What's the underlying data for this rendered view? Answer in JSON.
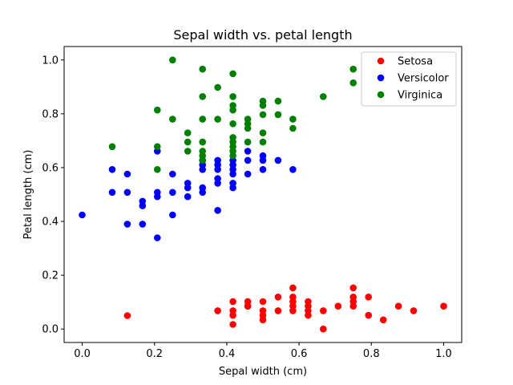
{
  "chart_data": {
    "type": "scatter",
    "title": "Sepal width vs. petal length",
    "xlabel": "Sepal width (cm)",
    "ylabel": "Petal length (cm)",
    "xlim": [
      -0.05,
      1.05
    ],
    "ylim": [
      -0.05,
      1.05
    ],
    "xticks": [
      0.0,
      0.2,
      0.4,
      0.6,
      0.8,
      1.0
    ],
    "yticks": [
      0.0,
      0.2,
      0.4,
      0.6,
      0.8,
      1.0
    ],
    "xtick_labels": [
      "0.0",
      "0.2",
      "0.4",
      "0.6",
      "0.8",
      "1.0"
    ],
    "ytick_labels": [
      "0.0",
      "0.2",
      "0.4",
      "0.6",
      "0.8",
      "1.0"
    ],
    "grid": false,
    "legend_position": "top-right",
    "series": [
      {
        "name": "Setosa",
        "color": "#ff0000",
        "points": [
          [
            0.125,
            0.05
          ],
          [
            0.375,
            0.068
          ],
          [
            0.417,
            0.102
          ],
          [
            0.417,
            0.068
          ],
          [
            0.417,
            0.051
          ],
          [
            0.417,
            0.017
          ],
          [
            0.458,
            0.102
          ],
          [
            0.458,
            0.085
          ],
          [
            0.458,
            0.085
          ],
          [
            0.5,
            0.102
          ],
          [
            0.5,
            0.068
          ],
          [
            0.5,
            0.051
          ],
          [
            0.5,
            0.034
          ],
          [
            0.542,
            0.119
          ],
          [
            0.542,
            0.068
          ],
          [
            0.583,
            0.153
          ],
          [
            0.583,
            0.119
          ],
          [
            0.583,
            0.102
          ],
          [
            0.583,
            0.085
          ],
          [
            0.583,
            0.068
          ],
          [
            0.625,
            0.102
          ],
          [
            0.625,
            0.085
          ],
          [
            0.625,
            0.068
          ],
          [
            0.625,
            0.051
          ],
          [
            0.667,
            0.068
          ],
          [
            0.667,
            0.0
          ],
          [
            0.708,
            0.085
          ],
          [
            0.75,
            0.153
          ],
          [
            0.75,
            0.119
          ],
          [
            0.75,
            0.102
          ],
          [
            0.75,
            0.085
          ],
          [
            0.792,
            0.119
          ],
          [
            0.792,
            0.051
          ],
          [
            0.833,
            0.034
          ],
          [
            0.875,
            0.085
          ],
          [
            0.917,
            0.068
          ],
          [
            1.0,
            0.085
          ]
        ]
      },
      {
        "name": "Versicolor",
        "color": "#0000ff",
        "points": [
          [
            0.0,
            0.424
          ],
          [
            0.083,
            0.593
          ],
          [
            0.083,
            0.508
          ],
          [
            0.125,
            0.576
          ],
          [
            0.125,
            0.508
          ],
          [
            0.125,
            0.39
          ],
          [
            0.167,
            0.475
          ],
          [
            0.167,
            0.458
          ],
          [
            0.167,
            0.39
          ],
          [
            0.208,
            0.661
          ],
          [
            0.208,
            0.508
          ],
          [
            0.208,
            0.492
          ],
          [
            0.208,
            0.339
          ],
          [
            0.25,
            0.576
          ],
          [
            0.25,
            0.508
          ],
          [
            0.25,
            0.424
          ],
          [
            0.292,
            0.542
          ],
          [
            0.292,
            0.525
          ],
          [
            0.292,
            0.492
          ],
          [
            0.333,
            0.627
          ],
          [
            0.333,
            0.61
          ],
          [
            0.333,
            0.593
          ],
          [
            0.333,
            0.525
          ],
          [
            0.333,
            0.508
          ],
          [
            0.375,
            0.627
          ],
          [
            0.375,
            0.61
          ],
          [
            0.375,
            0.593
          ],
          [
            0.375,
            0.559
          ],
          [
            0.375,
            0.542
          ],
          [
            0.375,
            0.441
          ],
          [
            0.417,
            0.627
          ],
          [
            0.417,
            0.61
          ],
          [
            0.417,
            0.593
          ],
          [
            0.417,
            0.576
          ],
          [
            0.417,
            0.542
          ],
          [
            0.417,
            0.525
          ],
          [
            0.458,
            0.661
          ],
          [
            0.458,
            0.627
          ],
          [
            0.458,
            0.576
          ],
          [
            0.5,
            0.644
          ],
          [
            0.5,
            0.627
          ],
          [
            0.5,
            0.593
          ],
          [
            0.542,
            0.627
          ],
          [
            0.583,
            0.593
          ]
        ]
      },
      {
        "name": "Virginica",
        "color": "#008000",
        "points": [
          [
            0.083,
            0.678
          ],
          [
            0.208,
            0.814
          ],
          [
            0.208,
            0.678
          ],
          [
            0.208,
            0.593
          ],
          [
            0.25,
            1.0
          ],
          [
            0.25,
            0.78
          ],
          [
            0.292,
            0.729
          ],
          [
            0.292,
            0.695
          ],
          [
            0.292,
            0.661
          ],
          [
            0.333,
            0.966
          ],
          [
            0.333,
            0.864
          ],
          [
            0.333,
            0.78
          ],
          [
            0.333,
            0.695
          ],
          [
            0.333,
            0.661
          ],
          [
            0.333,
            0.644
          ],
          [
            0.333,
            0.627
          ],
          [
            0.375,
            0.898
          ],
          [
            0.375,
            0.78
          ],
          [
            0.417,
            0.949
          ],
          [
            0.417,
            0.864
          ],
          [
            0.417,
            0.831
          ],
          [
            0.417,
            0.814
          ],
          [
            0.417,
            0.763
          ],
          [
            0.417,
            0.712
          ],
          [
            0.417,
            0.695
          ],
          [
            0.417,
            0.678
          ],
          [
            0.417,
            0.661
          ],
          [
            0.417,
            0.644
          ],
          [
            0.458,
            0.78
          ],
          [
            0.458,
            0.763
          ],
          [
            0.458,
            0.746
          ],
          [
            0.458,
            0.695
          ],
          [
            0.5,
            0.847
          ],
          [
            0.5,
            0.831
          ],
          [
            0.5,
            0.797
          ],
          [
            0.5,
            0.729
          ],
          [
            0.5,
            0.695
          ],
          [
            0.542,
            0.847
          ],
          [
            0.542,
            0.797
          ],
          [
            0.583,
            0.78
          ],
          [
            0.583,
            0.746
          ],
          [
            0.667,
            0.864
          ],
          [
            0.75,
            0.966
          ],
          [
            0.75,
            0.915
          ]
        ]
      }
    ]
  }
}
